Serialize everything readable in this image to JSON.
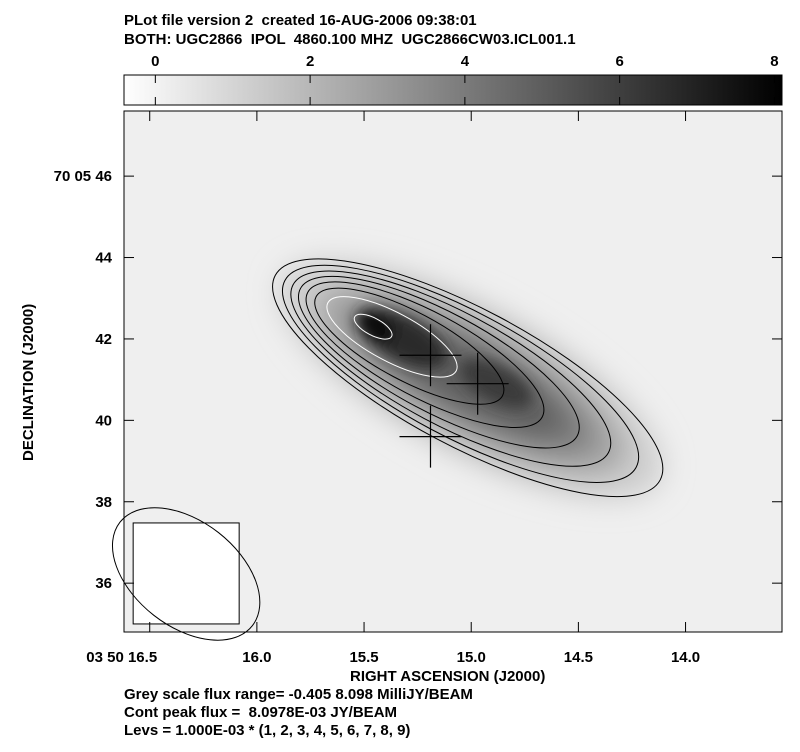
{
  "header": {
    "line1": "PLot file version 2  created 16-AUG-2006 09:38:01",
    "line2": "BOTH: UGC2866  IPOL  4860.100 MHZ  UGC2866CW03.ICL001.1"
  },
  "footer": {
    "line1": "Grey scale flux range= -0.405 8.098 MilliJY/BEAM",
    "line2": "Cont peak flux =  8.0978E-03 JY/BEAM",
    "line3": "Levs = 1.000E-03 * (1, 2, 3, 4, 5, 6, 7, 8, 9)"
  },
  "chart_data": {
    "type": "heatmap",
    "title": "",
    "xlabel": "RIGHT ASCENSION (J2000)",
    "ylabel": "DECLINATION (J2000)",
    "colorbar": {
      "ticks": [
        "0",
        "2",
        "4",
        "6",
        "8"
      ],
      "tick_values": [
        0,
        2,
        4,
        6,
        8
      ],
      "range": [
        -0.405,
        8.098
      ],
      "colormap": "white-to-black"
    },
    "x_ticks": {
      "labels": [
        "03 50 16.5",
        "16.0",
        "15.5",
        "15.0",
        "14.5",
        "14.0"
      ],
      "values_sec": [
        16.5,
        16.0,
        15.5,
        15.0,
        14.5,
        14.0
      ]
    },
    "y_ticks": {
      "labels": [
        "36",
        "38",
        "40",
        "42",
        "44",
        "70 05 46"
      ],
      "values_arcsec": [
        36,
        38,
        40,
        42,
        44,
        46
      ]
    },
    "x_range_sec": [
      16.62,
      13.55
    ],
    "y_range_arcsec": [
      34.8,
      47.6
    ],
    "contour_levels_mJy": [
      1,
      2,
      3,
      4,
      5,
      6,
      7,
      8,
      9
    ],
    "peak_flux_mJy": 8.098,
    "source": {
      "ra_sec": 15.0,
      "dec_arcsec": 41.0,
      "position_angle_deg": 58,
      "major_axis_arcsec_approx": 13,
      "minor_axis_arcsec_approx": 4
    },
    "crosses": [
      {
        "ra_sec": 15.19,
        "dec_arcsec": 41.6
      },
      {
        "ra_sec": 14.97,
        "dec_arcsec": 40.9
      },
      {
        "ra_sec": 15.19,
        "dec_arcsec": 39.6
      }
    ],
    "beam": {
      "ra_sec": 16.33,
      "dec_arcsec": 36.3,
      "position_angle_deg": 38,
      "major_arcsec_approx": 2.4,
      "minor_arcsec_approx": 1.5
    },
    "grid": false
  }
}
